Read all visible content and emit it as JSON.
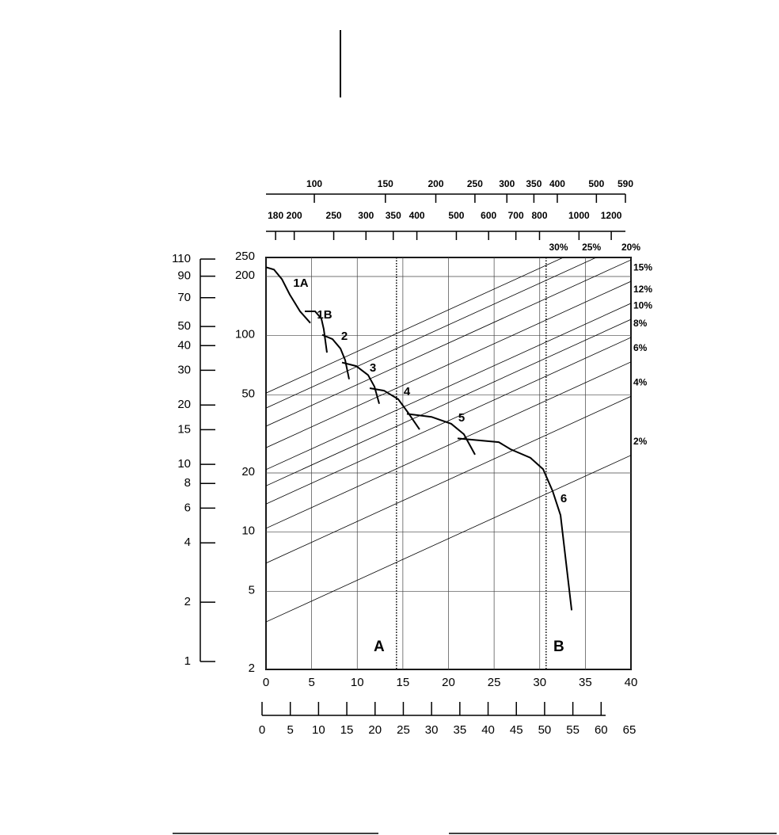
{
  "chart_data": {
    "type": "line",
    "xlim": [
      0,
      40
    ],
    "xticks": [
      0,
      5,
      10,
      15,
      20,
      25,
      30,
      35,
      40
    ],
    "ylim": [
      2,
      250
    ],
    "yticks": [
      2,
      5,
      10,
      20,
      50,
      100,
      200,
      250
    ],
    "y_log": true,
    "grid": true,
    "color": "#000000",
    "series": [
      {
        "name": "1A",
        "x": [
          0,
          0.87,
          1.74,
          2.6,
          3.73,
          4.86
        ],
        "values": [
          223,
          217,
          194,
          162,
          133,
          116
        ]
      },
      {
        "name": "1B",
        "x": [
          4.25,
          5.38,
          6.07,
          6.33,
          6.68
        ],
        "values": [
          133,
          133,
          122,
          108,
          82
        ]
      },
      {
        "name": "2",
        "x": [
          6.16,
          7.29,
          8.16,
          8.68,
          9.11
        ],
        "values": [
          101,
          96,
          86,
          75,
          60
        ]
      },
      {
        "name": "3",
        "x": [
          8.33,
          9.89,
          11.19,
          11.89,
          12.41
        ],
        "values": [
          73,
          70,
          63,
          55,
          45
        ]
      },
      {
        "name": "4",
        "x": [
          11.37,
          12.93,
          14.49,
          15.53,
          16.83
        ],
        "values": [
          54,
          52.5,
          47.5,
          40.8,
          33.3
        ]
      },
      {
        "name": "5",
        "x": [
          15.44,
          18.13,
          20.3,
          21.69,
          22.91
        ],
        "values": [
          40,
          38.6,
          35.6,
          31.5,
          24.8
        ]
      },
      {
        "name": "6",
        "x": [
          21,
          25.51,
          26.81,
          28.98,
          30.37,
          31.41,
          32.28,
          33.5
        ],
        "values": [
          30,
          28.7,
          26.4,
          23.9,
          20.9,
          16.2,
          12.2,
          4.0
        ]
      }
    ],
    "grade_lines": [
      {
        "name": "2%",
        "x": [
          0,
          40
        ],
        "values": [
          3.49,
          24.6
        ]
      },
      {
        "name": "4%",
        "x": [
          0,
          40
        ],
        "values": [
          6.95,
          49.1
        ]
      },
      {
        "name": "6%",
        "x": [
          0,
          40
        ],
        "values": [
          10.45,
          73.5
        ]
      },
      {
        "name": "8%",
        "x": [
          0,
          40
        ],
        "values": [
          13.9,
          97.9
        ]
      },
      {
        "name": "10%",
        "x": [
          0,
          40
        ],
        "values": [
          17.2,
          121
        ]
      },
      {
        "name": "12%",
        "x": [
          0,
          40
        ],
        "values": [
          20.8,
          146
        ]
      },
      {
        "name": "15%",
        "x": [
          0,
          40
        ],
        "values": [
          26.9,
          189
        ]
      },
      {
        "name": "20%",
        "x": [
          0,
          40
        ],
        "values": [
          34.6,
          243
        ]
      },
      {
        "name": "25%",
        "x": [
          0,
          40
        ],
        "values": [
          42.8,
          301
        ]
      },
      {
        "name": "30%",
        "x": [
          0,
          40
        ],
        "values": [
          51,
          359
        ]
      }
    ],
    "markers": [
      {
        "label": "A",
        "x": 14.3
      },
      {
        "label": "B",
        "x": 30.7
      }
    ],
    "top_axis_1": {
      "xlim": [
        75.9,
        590
      ],
      "log": true,
      "xticks": [
        100,
        150,
        200,
        250,
        300,
        350,
        400,
        500,
        590
      ]
    },
    "top_axis_2": {
      "xlim": [
        170.5,
        1300
      ],
      "log": true,
      "xticks": [
        180,
        200,
        250,
        300,
        350,
        400,
        500,
        600,
        700,
        800,
        1000,
        1200
      ]
    },
    "left_axis": {
      "ylim": [
        0.912,
        112
      ],
      "log": true,
      "yticks": [
        1,
        2,
        4,
        6,
        8,
        10,
        15,
        20,
        30,
        40,
        50,
        70,
        90,
        110
      ]
    },
    "bottom_axis": {
      "xlim": [
        0,
        65
      ],
      "xticks": [
        0,
        5,
        10,
        15,
        20,
        25,
        30,
        35,
        40,
        45,
        50,
        55,
        60,
        65
      ]
    }
  }
}
